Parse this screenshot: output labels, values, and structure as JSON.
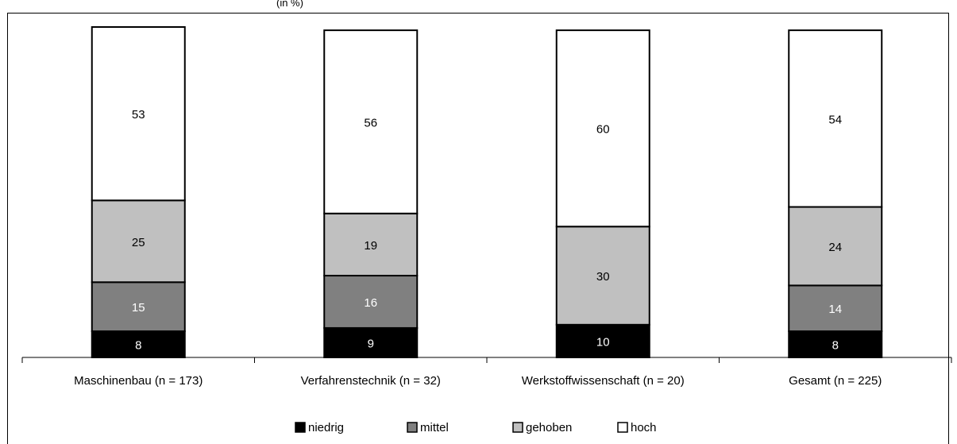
{
  "chart_data": {
    "type": "bar",
    "stacked": true,
    "title_fragment": "(in %)",
    "categories": [
      "Maschinenbau (n = 173)",
      "Verfahrenstechnik (n = 32)",
      "Werkstoffwissenschaft (n = 20)",
      "Gesamt (n = 225)"
    ],
    "series": [
      {
        "name": "niedrig",
        "color": "#000000",
        "label_color": "#ffffff",
        "values": [
          8,
          9,
          10,
          8
        ]
      },
      {
        "name": "mittel",
        "color": "#808080",
        "label_color": "#ffffff",
        "values": [
          15,
          16,
          0,
          14
        ]
      },
      {
        "name": "gehoben",
        "color": "#c0c0c0",
        "label_color": "#000000",
        "values": [
          25,
          19,
          30,
          24
        ]
      },
      {
        "name": "hoch",
        "color": "#ffffff",
        "label_color": "#000000",
        "values": [
          53,
          56,
          60,
          54
        ]
      }
    ],
    "ylim": [
      0,
      101
    ],
    "grid": false,
    "legend_position": "bottom"
  }
}
